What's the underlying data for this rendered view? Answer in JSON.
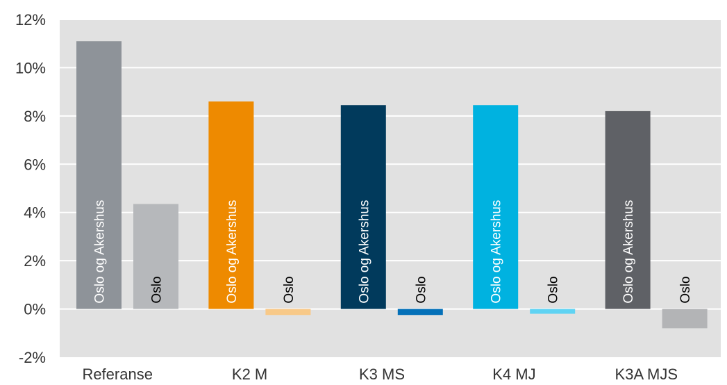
{
  "chart_data": {
    "type": "bar",
    "categories": [
      "Referanse",
      "K2 M",
      "K3 MS",
      "K4 MJ",
      "K3A MJS"
    ],
    "y_ticks": [
      "-2%",
      "0%",
      "2%",
      "4%",
      "6%",
      "8%",
      "10%",
      "12%"
    ],
    "ylim": [
      -2,
      12
    ],
    "grid": true,
    "colors": {
      "plot_background": "#e1e1e1",
      "gridline": "#ffffff"
    },
    "series": [
      {
        "bar_label": "Oslo og Akershus",
        "values": [
          11.1,
          8.6,
          8.45,
          8.45,
          8.2
        ],
        "colors": [
          "#8e9399",
          "#ee8a00",
          "#013a5c",
          "#00b2e0",
          "#5f6166"
        ],
        "label_colors": [
          "#ffffff",
          "#ffffff",
          "#ffffff",
          "#ffffff",
          "#ffffff"
        ]
      },
      {
        "bar_label": "Oslo",
        "values": [
          4.35,
          -0.25,
          -0.25,
          -0.2,
          -0.8
        ],
        "colors": [
          "#b6b8bb",
          "#f8c988",
          "#0470b8",
          "#5fd3f3",
          "#b3b4b6"
        ],
        "label_colors": [
          "#000000",
          "#000000",
          "#000000",
          "#000000",
          "#000000"
        ]
      }
    ]
  }
}
